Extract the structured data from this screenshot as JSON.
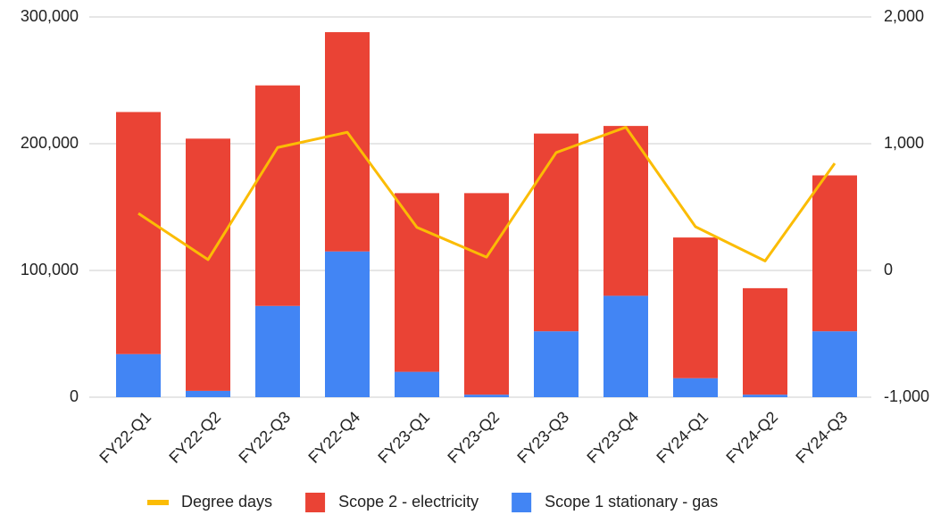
{
  "chart_data": {
    "type": "bar",
    "categories": [
      "FY22-Q1",
      "FY22-Q2",
      "FY22-Q3",
      "FY22-Q4",
      "FY23-Q1",
      "FY23-Q2",
      "FY23-Q3",
      "FY23-Q4",
      "FY24-Q1",
      "FY24-Q2",
      "FY24-Q3"
    ],
    "series": [
      {
        "name": "Degree days",
        "color": "#fbbc04",
        "type": "line",
        "axis": "y2",
        "values": [
          450,
          85,
          970,
          1090,
          340,
          105,
          930,
          1130,
          345,
          75,
          845
        ]
      },
      {
        "name": "Scope 2 - electricity",
        "color": "#ea4335",
        "type": "bar",
        "values": [
          191000,
          199000,
          174000,
          173000,
          141000,
          159000,
          156000,
          134000,
          111000,
          84000,
          123000
        ]
      },
      {
        "name": "Scope 1 stationary - gas",
        "color": "#4285f4",
        "type": "bar",
        "values": [
          34000,
          5000,
          72000,
          115000,
          20000,
          2000,
          52000,
          80000,
          15000,
          2000,
          52000
        ]
      }
    ],
    "stacked": true,
    "ylim": [
      0,
      300000
    ],
    "yticks": [
      0,
      {
        "value": 100000,
        "label": "100,000"
      },
      {
        "value": 200000,
        "label": "200,000"
      },
      {
        "value": 300000,
        "label": "300,000"
      }
    ],
    "y2lim": [
      -1000,
      2000
    ],
    "y2ticks": [
      {
        "value": -1000,
        "label": "-1,000"
      },
      0,
      {
        "value": 1000,
        "label": "1,000"
      },
      {
        "value": 2000,
        "label": "2,000"
      }
    ],
    "grid": true,
    "legend": "bottom"
  }
}
